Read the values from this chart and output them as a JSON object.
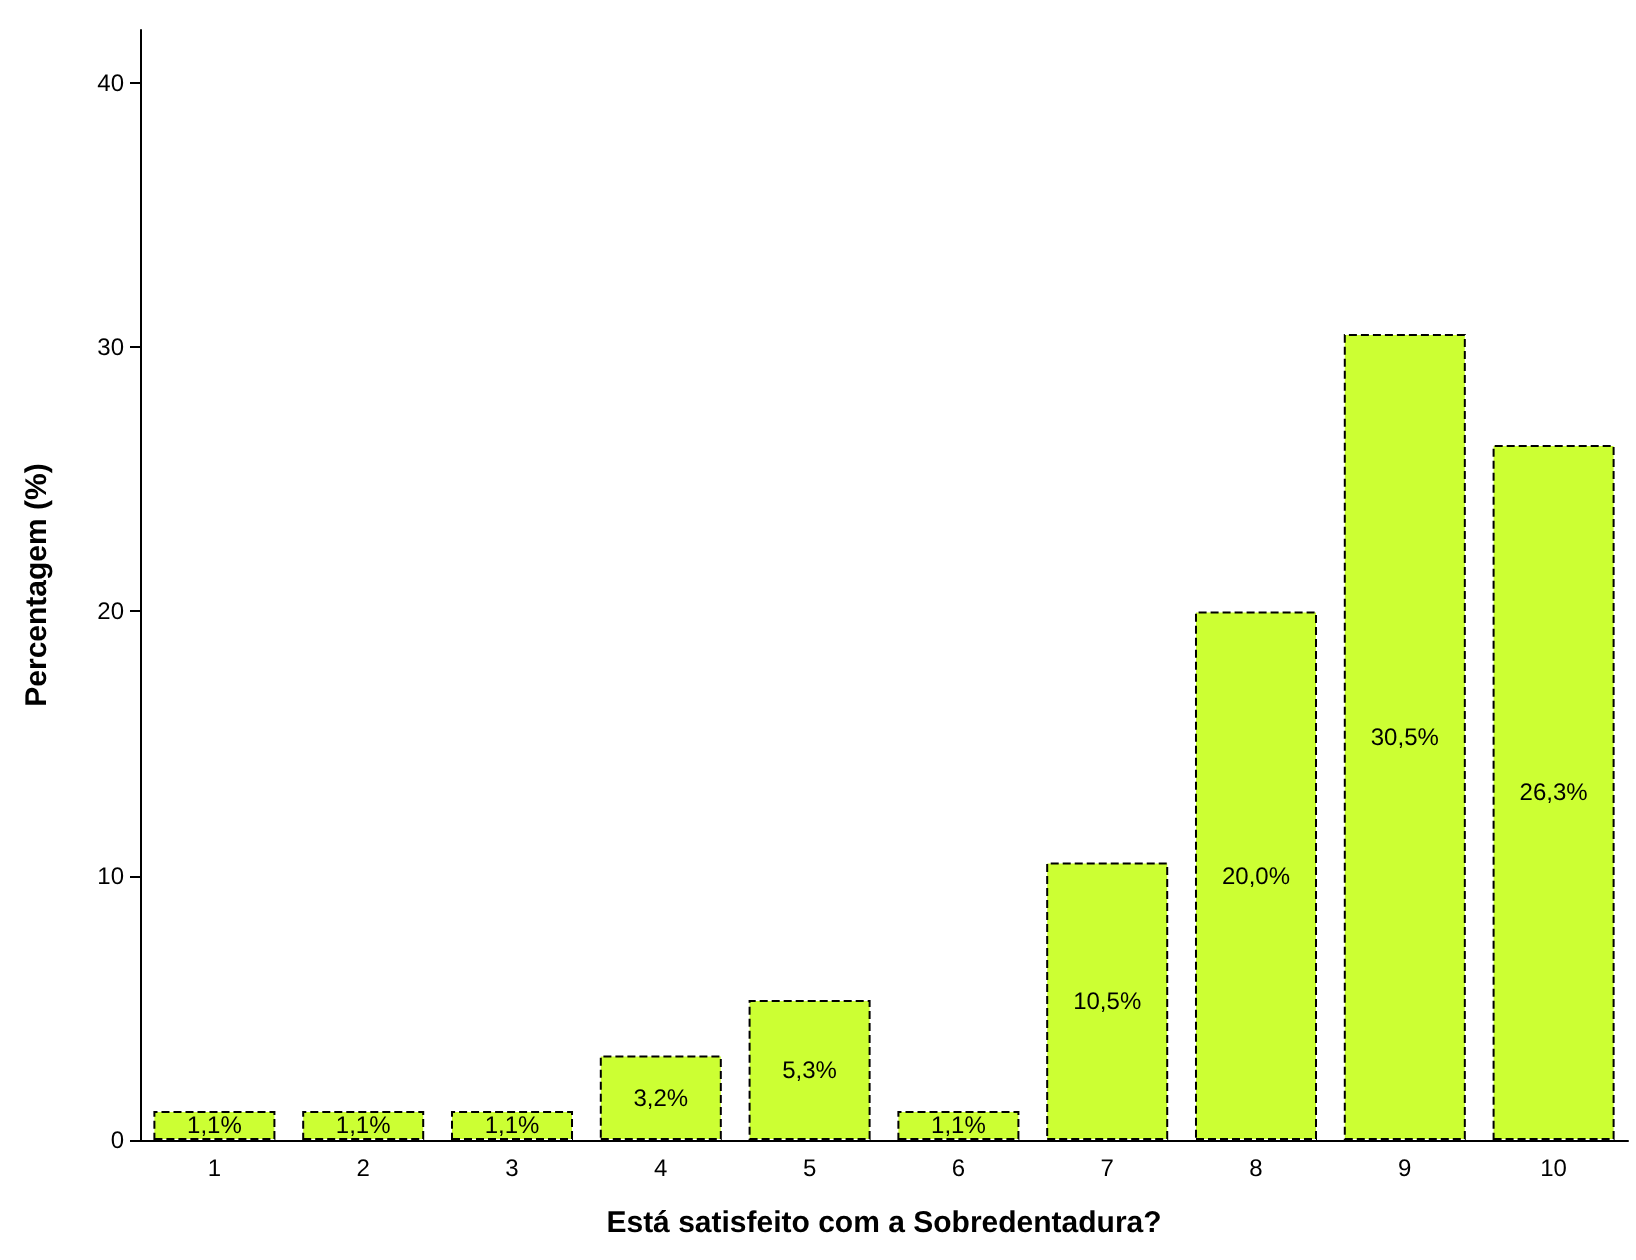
{
  "chart_data": {
    "type": "bar",
    "xlabel": "Está satisfeito com a Sobredentadura?",
    "ylabel": "Percentagem (%)",
    "categories": [
      "1",
      "2",
      "3",
      "4",
      "5",
      "6",
      "7",
      "8",
      "9",
      "10"
    ],
    "values": [
      1.1,
      1.1,
      1.1,
      3.2,
      5.3,
      1.1,
      10.5,
      20.0,
      30.5,
      26.3
    ],
    "value_labels": [
      "1,1%",
      "1,1%",
      "1,1%",
      "3,2%",
      "5,3%",
      "1,1%",
      "10,5%",
      "20,0%",
      "30,5%",
      "26,3%"
    ],
    "color": "#ccff33",
    "ylim": [
      0,
      42
    ],
    "yticks": [
      0,
      10,
      20,
      30,
      40
    ],
    "grid": false
  }
}
